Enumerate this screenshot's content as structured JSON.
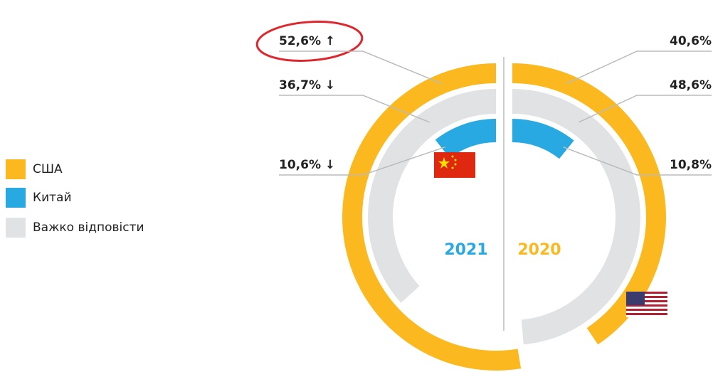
{
  "chart_data": {
    "type": "radial-bar",
    "categories": [
      "США",
      "Китай",
      "Важко відповісти"
    ],
    "colors": [
      "#fbb91f",
      "#29a9e1",
      "#e1e2e4"
    ],
    "series": [
      {
        "name": "2021",
        "color": "#29a9e1",
        "values": [
          52.6,
          10.6,
          36.7
        ],
        "value_labels": [
          "52,6% ↑",
          "10,6% ↓",
          "36,7% ↓"
        ]
      },
      {
        "name": "2020",
        "color": "#fbb91f",
        "values": [
          40.6,
          10.8,
          48.6
        ],
        "value_labels": [
          "40,6%",
          "10,8%",
          "48,6%"
        ]
      }
    ]
  }
}
